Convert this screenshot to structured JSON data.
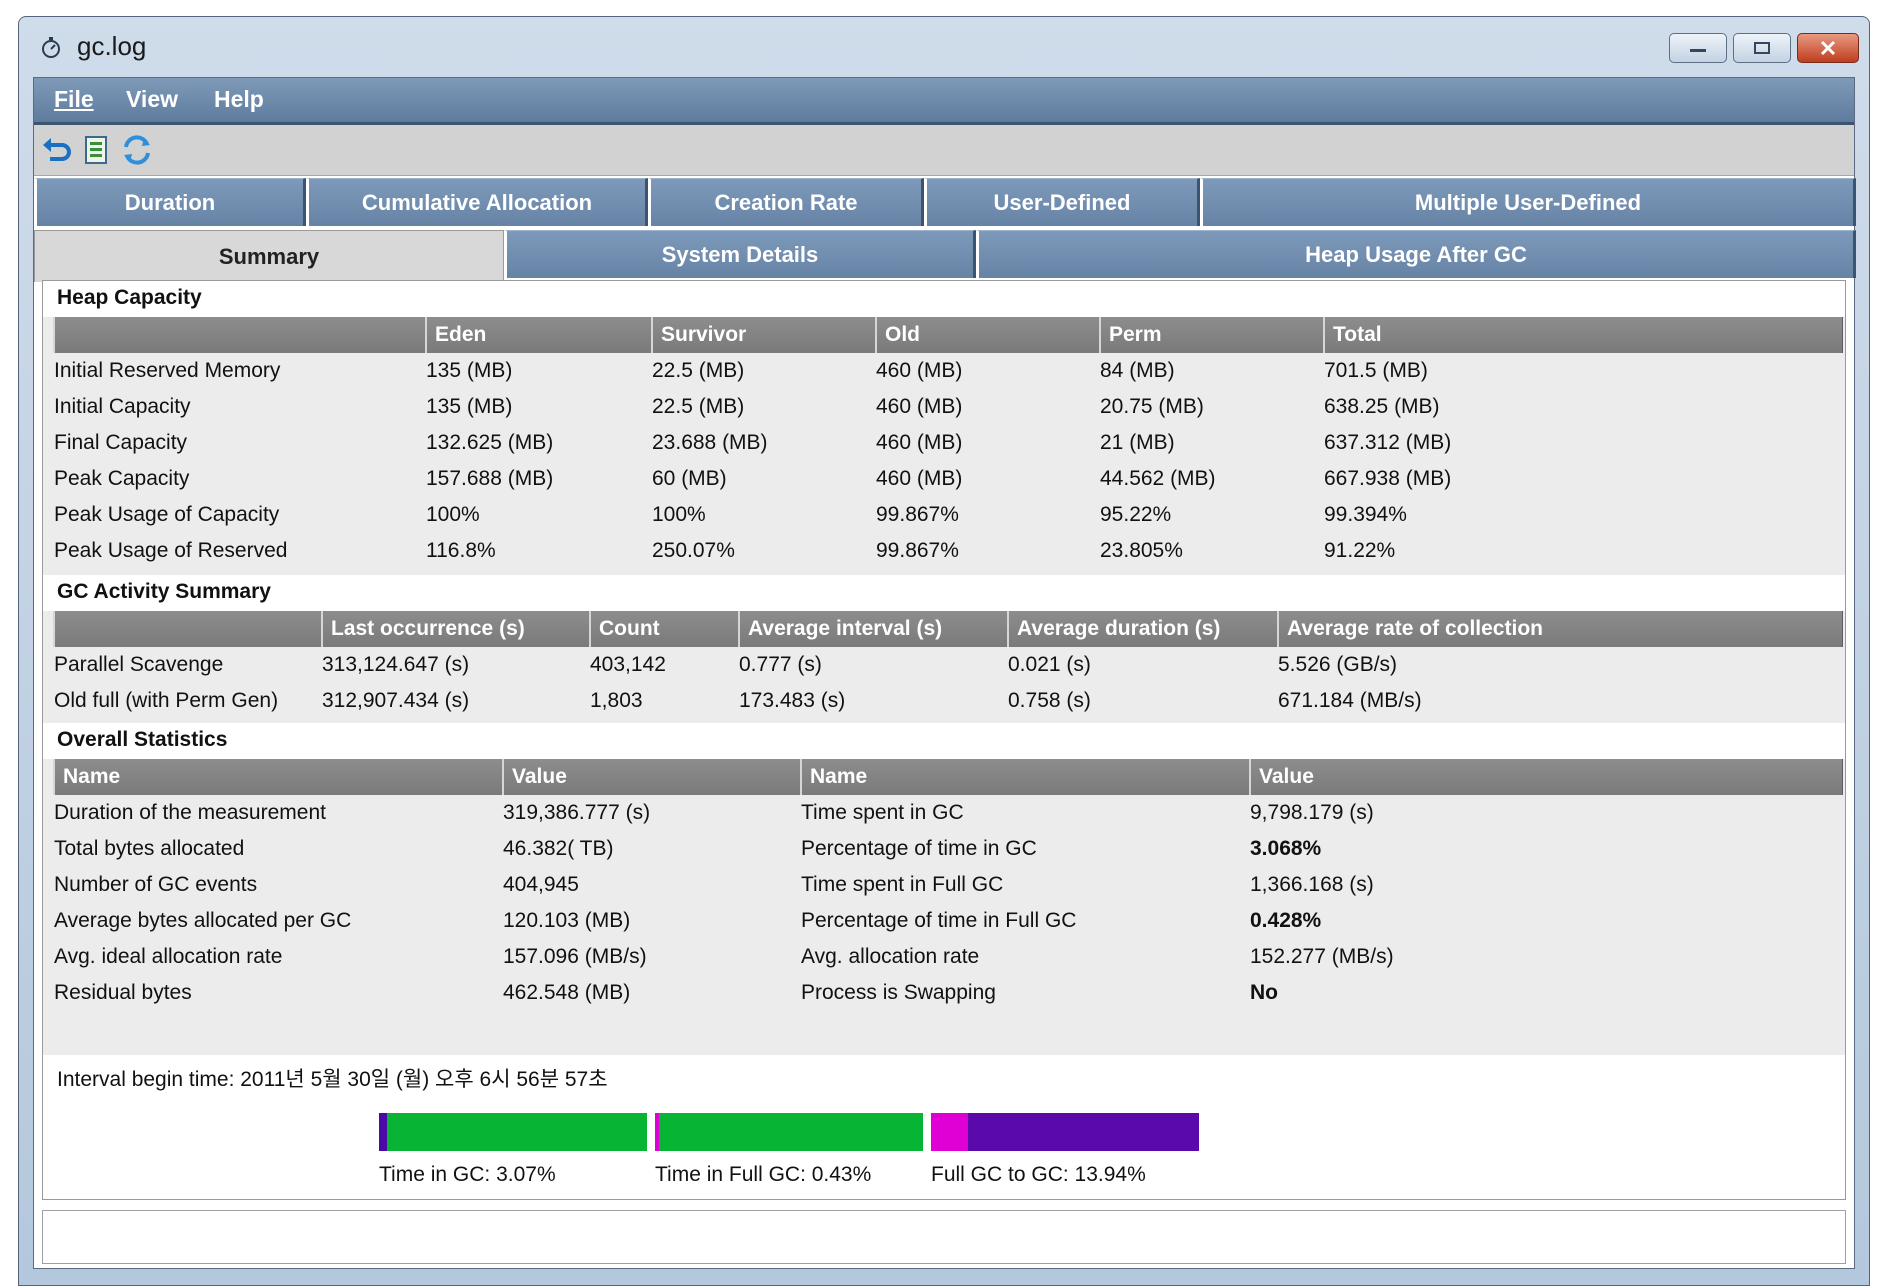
{
  "window": {
    "title": "gc.log"
  },
  "menu": {
    "file": "File",
    "view": "View",
    "help": "Help"
  },
  "tabs_row1": [
    "Duration",
    "Cumulative Allocation",
    "Creation Rate",
    "User-Defined",
    "Multiple User-Defined"
  ],
  "tabs_row2": [
    "Summary",
    "System Details",
    "Heap Usage After GC"
  ],
  "heap_capacity": {
    "title": "Heap Capacity",
    "headers": [
      "",
      "Eden",
      "Survivor",
      "Old",
      "Perm",
      "Total"
    ],
    "rows": [
      [
        "Initial Reserved Memory",
        "135 (MB)",
        "22.5 (MB)",
        "460 (MB)",
        "84 (MB)",
        "701.5 (MB)"
      ],
      [
        "Initial Capacity",
        "135 (MB)",
        "22.5 (MB)",
        "460 (MB)",
        "20.75 (MB)",
        "638.25 (MB)"
      ],
      [
        "Final Capacity",
        "132.625 (MB)",
        "23.688 (MB)",
        "460 (MB)",
        "21 (MB)",
        "637.312 (MB)"
      ],
      [
        "Peak Capacity",
        "157.688 (MB)",
        "60 (MB)",
        "460 (MB)",
        "44.562 (MB)",
        "667.938 (MB)"
      ],
      [
        "Peak Usage of Capacity",
        "100%",
        "100%",
        "99.867%",
        "95.22%",
        "99.394%"
      ],
      [
        "Peak Usage of Reserved",
        "116.8%",
        "250.07%",
        "99.867%",
        "23.805%",
        "91.22%"
      ]
    ]
  },
  "gc_activity": {
    "title": "GC Activity Summary",
    "headers": [
      "",
      "Last occurrence (s)",
      "Count",
      "Average interval (s)",
      "Average duration (s)",
      "Average rate of collection"
    ],
    "rows": [
      [
        "Parallel Scavenge",
        "313,124.647 (s)",
        "403,142",
        "0.777 (s)",
        "0.021 (s)",
        "5.526 (GB/s)"
      ],
      [
        "Old full (with Perm Gen)",
        "312,907.434 (s)",
        "1,803",
        "173.483 (s)",
        "0.758 (s)",
        "671.184 (MB/s)"
      ]
    ]
  },
  "overall": {
    "title": "Overall Statistics",
    "headers": [
      "Name",
      "Value",
      "Name",
      "Value"
    ],
    "rows": [
      [
        "Duration of the measurement",
        "319,386.777 (s)",
        "Time spent in GC",
        "9,798.179 (s)"
      ],
      [
        "Total bytes allocated",
        "46.382( TB)",
        "Percentage of time in GC",
        "3.068%"
      ],
      [
        "Number of GC events",
        "404,945",
        "Time spent in Full GC",
        "1,366.168 (s)"
      ],
      [
        "Average bytes allocated per GC",
        "120.103 (MB)",
        "Percentage of time in Full GC",
        "0.428%"
      ],
      [
        "Avg. ideal allocation rate",
        "157.096 (MB/s)",
        "Avg. allocation rate",
        "152.277 (MB/s)"
      ],
      [
        "Residual bytes",
        "462.548 (MB)",
        "Process is Swapping",
        "No"
      ]
    ],
    "bold_cells": [
      [
        1,
        3
      ],
      [
        3,
        3
      ],
      [
        5,
        3
      ]
    ]
  },
  "interval": {
    "text": "Interval begin time: 2011년 5월 30일 (월) 오후 6시 56분 57초",
    "bars": [
      {
        "label": "Time in GC: 3.07%",
        "fraction": 0.0307,
        "accent": "#4b0aa8",
        "fill": "#08b433"
      },
      {
        "label": "Time in Full GC: 0.43%",
        "fraction": 0.0043,
        "accent": "#e000d6",
        "fill": "#08b433"
      },
      {
        "label": "Full GC to GC: 13.94%",
        "fraction": 0.1394,
        "accent": "#e000d6",
        "fill": "#5a0aaa"
      }
    ]
  },
  "colors": {
    "tab_blue": "#6f8cb0",
    "header_gray": "#858585",
    "gc_green": "#08b433",
    "purple": "#5a0aaa",
    "magenta": "#e000d6"
  }
}
